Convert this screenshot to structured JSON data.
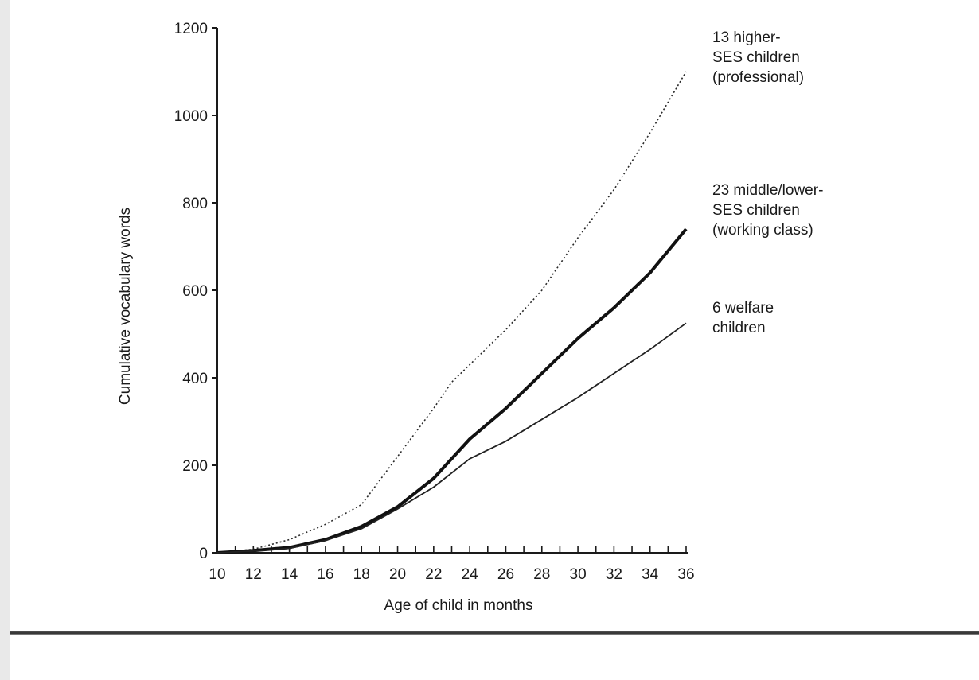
{
  "chart_data": {
    "type": "line",
    "title": "",
    "xlabel": "Age of child in months",
    "ylabel": "Cumulative vocabulary words",
    "xlim": [
      10,
      36
    ],
    "ylim": [
      0,
      1200
    ],
    "x_ticks": [
      "10",
      "12",
      "14",
      "16",
      "18",
      "20",
      "22",
      "24",
      "26",
      "28",
      "30",
      "32",
      "34",
      "36"
    ],
    "y_ticks": [
      "0",
      "200",
      "400",
      "600",
      "800",
      "1000",
      "1200"
    ],
    "grid": false,
    "series": [
      {
        "name_lines": [
          "13 higher-",
          "SES children",
          "(professional)"
        ],
        "style": "dotted",
        "x": [
          10,
          12,
          14,
          16,
          18,
          20,
          22,
          23,
          24,
          26,
          28,
          30,
          32,
          34,
          36
        ],
        "y": [
          0,
          8,
          30,
          65,
          110,
          220,
          330,
          390,
          430,
          510,
          600,
          720,
          830,
          960,
          1100
        ]
      },
      {
        "name_lines": [
          "23 middle/lower-",
          "SES children",
          "(working class)"
        ],
        "style": "thick",
        "x": [
          10,
          12,
          14,
          16,
          18,
          20,
          22,
          24,
          26,
          28,
          30,
          32,
          34,
          36
        ],
        "y": [
          0,
          5,
          12,
          30,
          60,
          105,
          170,
          260,
          330,
          410,
          490,
          560,
          640,
          740
        ]
      },
      {
        "name_lines": [
          "6 welfare",
          "children"
        ],
        "style": "thin",
        "x": [
          10,
          12,
          14,
          16,
          18,
          20,
          22,
          24,
          26,
          28,
          30,
          32,
          34,
          36
        ],
        "y": [
          0,
          4,
          10,
          28,
          55,
          100,
          150,
          215,
          255,
          305,
          355,
          410,
          465,
          525
        ]
      }
    ]
  }
}
